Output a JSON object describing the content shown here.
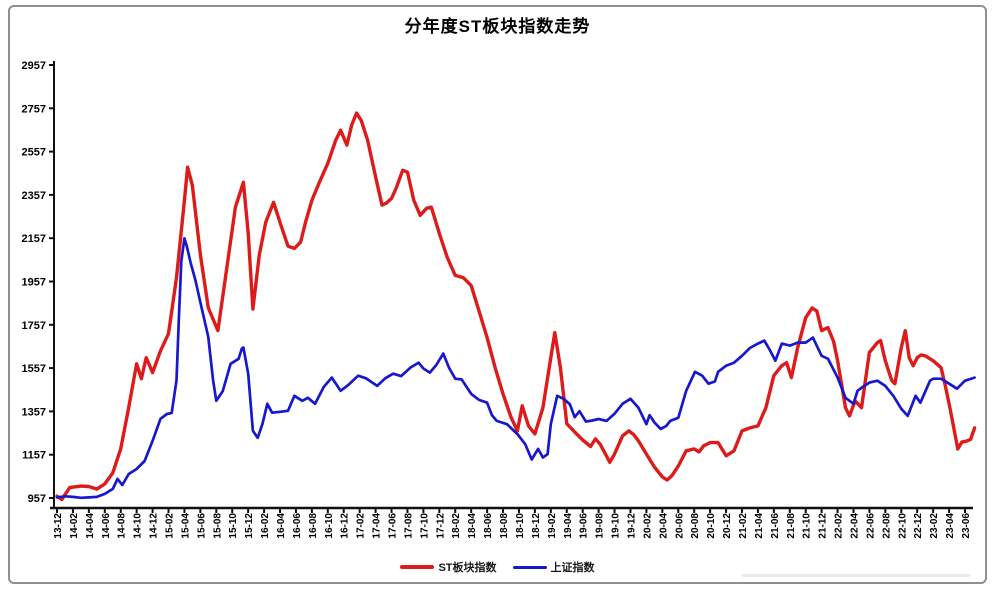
{
  "chart_data": {
    "type": "line",
    "title": "分年度ST板块指数走势",
    "grid": false,
    "legend_position": "bottom",
    "y_axis": {
      "min": 957,
      "max": 2957,
      "step": 200,
      "tick_labels": [
        "957",
        "1157",
        "1357",
        "1557",
        "1757",
        "1957",
        "2157",
        "2357",
        "2557",
        "2757",
        "2957"
      ]
    },
    "x_axis": {
      "tick_labels": [
        "13-12",
        "14-02",
        "14-04",
        "14-06",
        "14-08",
        "14-10",
        "14-12",
        "15-02",
        "15-04",
        "15-06",
        "15-08",
        "15-10",
        "15-12",
        "16-02",
        "16-04",
        "16-06",
        "16-08",
        "16-10",
        "16-12",
        "17-02",
        "17-04",
        "17-06",
        "17-08",
        "17-10",
        "17-12",
        "18-02",
        "18-04",
        "18-06",
        "18-08",
        "18-10",
        "18-12",
        "19-02",
        "19-04",
        "19-06",
        "19-08",
        "19-10",
        "19-12",
        "20-02",
        "20-04",
        "20-06",
        "20-08",
        "20-10",
        "20-12",
        "21-02",
        "21-04",
        "21-06",
        "21-08",
        "21-10",
        "21-12",
        "22-02",
        "22-04",
        "22-06",
        "22-08",
        "22-10",
        "22-12",
        "23-02",
        "23-04",
        "23-06"
      ]
    },
    "series": [
      {
        "id": "st-board-index",
        "name": "ST板块指数",
        "color": "#dd1b1b",
        "width": 3.4,
        "points": [
          [
            0,
            966
          ],
          [
            0.3,
            950
          ],
          [
            0.8,
            1005
          ],
          [
            1.5,
            1012
          ],
          [
            2,
            1010
          ],
          [
            2.5,
            998
          ],
          [
            3,
            1022
          ],
          [
            3.5,
            1073
          ],
          [
            4,
            1184
          ],
          [
            4.5,
            1374
          ],
          [
            5,
            1577
          ],
          [
            5.3,
            1508
          ],
          [
            5.6,
            1605
          ],
          [
            6,
            1536
          ],
          [
            6.5,
            1637
          ],
          [
            7,
            1716
          ],
          [
            7.5,
            1975
          ],
          [
            8,
            2330
          ],
          [
            8.2,
            2485
          ],
          [
            8.5,
            2400
          ],
          [
            9,
            2080
          ],
          [
            9.5,
            1835
          ],
          [
            10.1,
            1730
          ],
          [
            10.6,
            1990
          ],
          [
            11.2,
            2300
          ],
          [
            11.7,
            2415
          ],
          [
            12,
            2180
          ],
          [
            12.3,
            1830
          ],
          [
            12.7,
            2080
          ],
          [
            13.1,
            2230
          ],
          [
            13.6,
            2323
          ],
          [
            14,
            2230
          ],
          [
            14.5,
            2120
          ],
          [
            14.9,
            2110
          ],
          [
            15.3,
            2140
          ],
          [
            15.6,
            2230
          ],
          [
            16,
            2332
          ],
          [
            16.5,
            2420
          ],
          [
            17,
            2503
          ],
          [
            17.5,
            2610
          ],
          [
            17.8,
            2656
          ],
          [
            18.2,
            2587
          ],
          [
            18.5,
            2680
          ],
          [
            18.8,
            2735
          ],
          [
            19.1,
            2700
          ],
          [
            19.5,
            2610
          ],
          [
            20,
            2440
          ],
          [
            20.4,
            2310
          ],
          [
            20.7,
            2320
          ],
          [
            21,
            2341
          ],
          [
            21.3,
            2390
          ],
          [
            21.7,
            2471
          ],
          [
            22,
            2462
          ],
          [
            22.4,
            2332
          ],
          [
            22.8,
            2263
          ],
          [
            23.2,
            2295
          ],
          [
            23.5,
            2300
          ],
          [
            24,
            2179
          ],
          [
            24.5,
            2068
          ],
          [
            25,
            1985
          ],
          [
            25.5,
            1975
          ],
          [
            26,
            1938
          ],
          [
            26.5,
            1820
          ],
          [
            27,
            1698
          ],
          [
            27.5,
            1560
          ],
          [
            28,
            1438
          ],
          [
            28.5,
            1330
          ],
          [
            28.9,
            1267
          ],
          [
            29.2,
            1383
          ],
          [
            29.6,
            1290
          ],
          [
            30,
            1253
          ],
          [
            30.5,
            1374
          ],
          [
            31,
            1605
          ],
          [
            31.25,
            1721
          ],
          [
            31.6,
            1560
          ],
          [
            32,
            1300
          ],
          [
            32.5,
            1262
          ],
          [
            33,
            1225
          ],
          [
            33.5,
            1195
          ],
          [
            33.8,
            1230
          ],
          [
            34.1,
            1205
          ],
          [
            34.5,
            1150
          ],
          [
            34.7,
            1122
          ],
          [
            35,
            1160
          ],
          [
            35.5,
            1244
          ],
          [
            35.9,
            1267
          ],
          [
            36.2,
            1250
          ],
          [
            36.5,
            1221
          ],
          [
            37,
            1160
          ],
          [
            37.5,
            1100
          ],
          [
            38,
            1055
          ],
          [
            38.3,
            1040
          ],
          [
            38.6,
            1060
          ],
          [
            39,
            1105
          ],
          [
            39.5,
            1175
          ],
          [
            40,
            1184
          ],
          [
            40.3,
            1170
          ],
          [
            40.6,
            1198
          ],
          [
            41,
            1213
          ],
          [
            41.5,
            1213
          ],
          [
            42,
            1152
          ],
          [
            42.5,
            1175
          ],
          [
            43,
            1267
          ],
          [
            43.5,
            1281
          ],
          [
            44,
            1290
          ],
          [
            44.5,
            1374
          ],
          [
            45,
            1522
          ],
          [
            45.5,
            1568
          ],
          [
            45.8,
            1582
          ],
          [
            46.1,
            1513
          ],
          [
            46.5,
            1652
          ],
          [
            47,
            1790
          ],
          [
            47.4,
            1835
          ],
          [
            47.7,
            1820
          ],
          [
            48,
            1730
          ],
          [
            48.4,
            1744
          ],
          [
            48.75,
            1680
          ],
          [
            49,
            1591
          ],
          [
            49.5,
            1374
          ],
          [
            49.75,
            1336
          ],
          [
            50.1,
            1406
          ],
          [
            50.5,
            1374
          ],
          [
            51,
            1629
          ],
          [
            51.5,
            1675
          ],
          [
            51.7,
            1684
          ],
          [
            52,
            1591
          ],
          [
            52.4,
            1500
          ],
          [
            52.6,
            1485
          ],
          [
            53,
            1652
          ],
          [
            53.25,
            1730
          ],
          [
            53.5,
            1605
          ],
          [
            53.75,
            1568
          ],
          [
            54,
            1605
          ],
          [
            54.25,
            1618
          ],
          [
            54.5,
            1614
          ],
          [
            55,
            1591
          ],
          [
            55.5,
            1559
          ],
          [
            55.75,
            1480
          ],
          [
            56.05,
            1374
          ],
          [
            56.3,
            1280
          ],
          [
            56.55,
            1184
          ],
          [
            56.8,
            1215
          ],
          [
            57.1,
            1220
          ],
          [
            57.35,
            1228
          ],
          [
            57.6,
            1281
          ]
        ]
      },
      {
        "id": "sse-composite-index",
        "name": "上证指数",
        "color": "#1717cd",
        "width": 2.7,
        "points": [
          [
            0,
            960
          ],
          [
            0.5,
            965
          ],
          [
            1,
            962
          ],
          [
            1.5,
            958
          ],
          [
            2,
            960
          ],
          [
            2.5,
            962
          ],
          [
            3,
            976
          ],
          [
            3.5,
            999
          ],
          [
            3.8,
            1045
          ],
          [
            4.1,
            1017
          ],
          [
            4.5,
            1068
          ],
          [
            5,
            1091
          ],
          [
            5.5,
            1128
          ],
          [
            6,
            1221
          ],
          [
            6.5,
            1323
          ],
          [
            6.9,
            1345
          ],
          [
            7.2,
            1350
          ],
          [
            7.5,
            1500
          ],
          [
            7.65,
            1790
          ],
          [
            7.8,
            2050
          ],
          [
            8,
            2156
          ],
          [
            8.15,
            2120
          ],
          [
            8.4,
            2040
          ],
          [
            8.7,
            1960
          ],
          [
            9,
            1860
          ],
          [
            9.5,
            1700
          ],
          [
            9.8,
            1500
          ],
          [
            10,
            1406
          ],
          [
            10.4,
            1450
          ],
          [
            10.9,
            1577
          ],
          [
            11.4,
            1600
          ],
          [
            11.6,
            1647
          ],
          [
            11.7,
            1652
          ],
          [
            12,
            1531
          ],
          [
            12.3,
            1267
          ],
          [
            12.6,
            1235
          ],
          [
            12.9,
            1300
          ],
          [
            13.2,
            1392
          ],
          [
            13.5,
            1351
          ],
          [
            14,
            1355
          ],
          [
            14.5,
            1360
          ],
          [
            14.9,
            1429
          ],
          [
            15.4,
            1406
          ],
          [
            15.75,
            1420
          ],
          [
            16.2,
            1392
          ],
          [
            16.75,
            1470
          ],
          [
            17.25,
            1513
          ],
          [
            17.8,
            1452
          ],
          [
            18.3,
            1480
          ],
          [
            18.9,
            1522
          ],
          [
            19.4,
            1510
          ],
          [
            20.1,
            1475
          ],
          [
            20.6,
            1510
          ],
          [
            21.1,
            1531
          ],
          [
            21.6,
            1520
          ],
          [
            22.2,
            1560
          ],
          [
            22.7,
            1582
          ],
          [
            23,
            1555
          ],
          [
            23.4,
            1536
          ],
          [
            23.8,
            1570
          ],
          [
            24.25,
            1624
          ],
          [
            24.6,
            1560
          ],
          [
            25,
            1508
          ],
          [
            25.4,
            1505
          ],
          [
            26,
            1438
          ],
          [
            26.5,
            1410
          ],
          [
            27,
            1397
          ],
          [
            27.3,
            1340
          ],
          [
            27.6,
            1313
          ],
          [
            28.25,
            1298
          ],
          [
            28.9,
            1252
          ],
          [
            29.4,
            1205
          ],
          [
            29.8,
            1135
          ],
          [
            30.2,
            1184
          ],
          [
            30.5,
            1144
          ],
          [
            30.8,
            1160
          ],
          [
            31,
            1298
          ],
          [
            31.4,
            1429
          ],
          [
            31.8,
            1415
          ],
          [
            32.2,
            1390
          ],
          [
            32.5,
            1330
          ],
          [
            32.8,
            1358
          ],
          [
            33.2,
            1310
          ],
          [
            33.6,
            1315
          ],
          [
            34,
            1322
          ],
          [
            34.5,
            1313
          ],
          [
            35,
            1346
          ],
          [
            35.5,
            1392
          ],
          [
            36,
            1415
          ],
          [
            36.5,
            1374
          ],
          [
            37,
            1298
          ],
          [
            37.2,
            1340
          ],
          [
            37.5,
            1306
          ],
          [
            37.9,
            1276
          ],
          [
            38.25,
            1290
          ],
          [
            38.5,
            1313
          ],
          [
            39,
            1328
          ],
          [
            39.5,
            1452
          ],
          [
            40.05,
            1540
          ],
          [
            40.5,
            1522
          ],
          [
            40.9,
            1485
          ],
          [
            41.3,
            1495
          ],
          [
            41.5,
            1540
          ],
          [
            42,
            1568
          ],
          [
            42.5,
            1582
          ],
          [
            43,
            1614
          ],
          [
            43.5,
            1650
          ],
          [
            44,
            1670
          ],
          [
            44.4,
            1684
          ],
          [
            44.75,
            1640
          ],
          [
            45.1,
            1591
          ],
          [
            45.5,
            1670
          ],
          [
            46,
            1661
          ],
          [
            46.5,
            1675
          ],
          [
            47,
            1675
          ],
          [
            47.45,
            1698
          ],
          [
            48,
            1614
          ],
          [
            48.4,
            1600
          ],
          [
            49,
            1513
          ],
          [
            49.5,
            1420
          ],
          [
            50,
            1392
          ],
          [
            50.25,
            1452
          ],
          [
            50.5,
            1466
          ],
          [
            51,
            1490
          ],
          [
            51.5,
            1499
          ],
          [
            52,
            1475
          ],
          [
            52.5,
            1429
          ],
          [
            53,
            1369
          ],
          [
            53.4,
            1336
          ],
          [
            53.9,
            1429
          ],
          [
            54.2,
            1397
          ],
          [
            54.8,
            1499
          ],
          [
            55,
            1508
          ],
          [
            55.5,
            1508
          ],
          [
            56,
            1485
          ],
          [
            56.5,
            1462
          ],
          [
            57,
            1499
          ],
          [
            57.6,
            1513
          ]
        ]
      }
    ]
  },
  "legend": [
    {
      "label": "ST板块指数",
      "color": "#dd1b1b"
    },
    {
      "label": "上证指数",
      "color": "#1717cd"
    }
  ]
}
